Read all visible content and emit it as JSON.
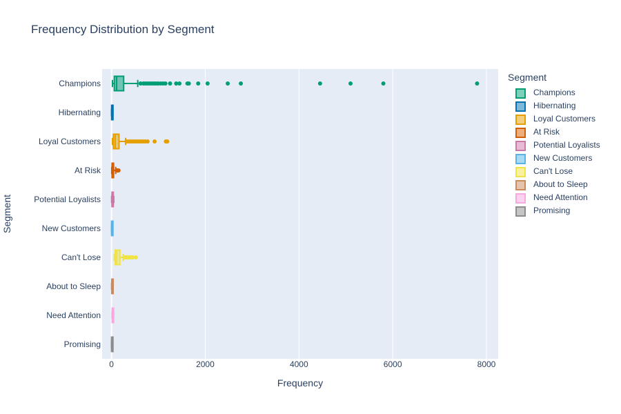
{
  "chart_data": {
    "type": "box",
    "orientation": "horizontal",
    "title": "Frequency Distribution by Segment",
    "xlabel": "Frequency",
    "ylabel": "Segment",
    "xlim": [
      -200,
      8250
    ],
    "xticks": [
      0,
      2000,
      4000,
      6000,
      8000
    ],
    "xtick_labels": [
      "0",
      "2000",
      "4000",
      "6000",
      "8000"
    ],
    "grid": true,
    "legend": {
      "title": "Segment",
      "placement": "right"
    },
    "series": [
      {
        "name": "Champions",
        "color": "#009e73",
        "min": 20,
        "q1": 60,
        "median": 110,
        "q3": 260,
        "max": 560,
        "outliers": [
          620,
          680,
          720,
          760,
          800,
          840,
          880,
          920,
          960,
          1000,
          1050,
          1100,
          1150,
          1250,
          1380,
          1450,
          1620,
          1650,
          1850,
          2050,
          2480,
          2760,
          4450,
          5100,
          5800,
          7800
        ]
      },
      {
        "name": "Hibernating",
        "color": "#0072b2",
        "min": 1,
        "q1": 3,
        "median": 8,
        "q3": 15,
        "max": 30,
        "outliers": []
      },
      {
        "name": "Loyal Customers",
        "color": "#e69f00",
        "min": 20,
        "q1": 40,
        "median": 80,
        "q3": 160,
        "max": 300,
        "outliers": [
          320,
          360,
          400,
          440,
          480,
          520,
          560,
          600,
          640,
          680,
          720,
          770,
          920,
          1160,
          1190
        ]
      },
      {
        "name": "At Risk",
        "color": "#d55e00",
        "min": 5,
        "q1": 12,
        "median": 25,
        "q3": 45,
        "max": 90,
        "outliers": [
          110,
          130,
          150
        ]
      },
      {
        "name": "Potential Loyalists",
        "color": "#cc79a7",
        "min": 2,
        "q1": 10,
        "median": 20,
        "q3": 35,
        "max": 50,
        "outliers": []
      },
      {
        "name": "New Customers",
        "color": "#56b4e9",
        "min": 1,
        "q1": 2,
        "median": 4,
        "q3": 7,
        "max": 12,
        "outliers": []
      },
      {
        "name": "Can't Lose",
        "color": "#f0e442",
        "min": 60,
        "q1": 80,
        "median": 110,
        "q3": 180,
        "max": 250,
        "outliers": [
          270,
          300,
          330,
          360,
          390,
          420,
          450,
          520
        ]
      },
      {
        "name": "About to Sleep",
        "color": "#cc8a5c",
        "min": 2,
        "q1": 6,
        "median": 12,
        "q3": 20,
        "max": 30,
        "outliers": []
      },
      {
        "name": "Need Attention",
        "color": "#f7a8e0",
        "min": 10,
        "q1": 15,
        "median": 25,
        "q3": 35,
        "max": 45,
        "outliers": []
      },
      {
        "name": "Promising",
        "color": "#8c8c8c",
        "min": 1,
        "q1": 2,
        "median": 4,
        "q3": 8,
        "max": 12,
        "outliers": []
      }
    ]
  }
}
